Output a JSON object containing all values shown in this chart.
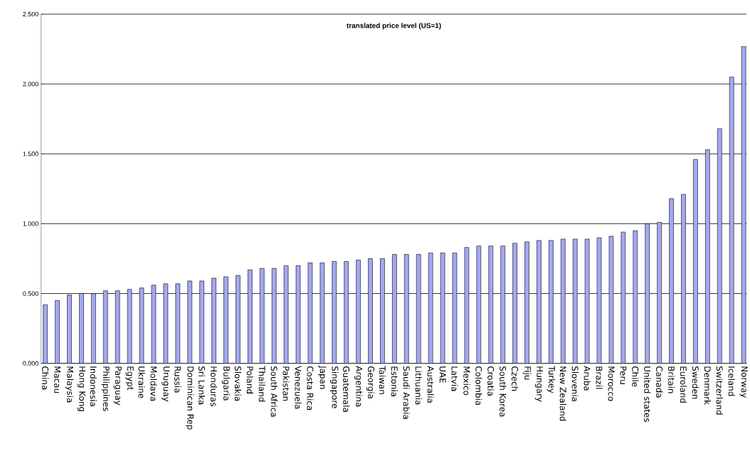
{
  "chart_data": {
    "type": "bar",
    "title": "translated price level (US=1)",
    "categories": [
      "China",
      "Macau",
      "Malaysia",
      "Hong Kong",
      "Indonesia",
      "Philippines",
      "Paraguay",
      "Egypt",
      "Ukraine",
      "Moldava",
      "Uruguay",
      "Russia",
      "Dominican Rep",
      "Sri Lanka",
      "Honduras",
      "Bulgaria",
      "Slovakia",
      "Poland",
      "Thailand",
      "South Africa",
      "Pakistan",
      "Venezuela",
      "Costa Rica",
      "Japan",
      "Singapore",
      "Guatemala",
      "Argentina",
      "Georgia",
      "Taiwan",
      "Estonia",
      "Saudi Arabia",
      "Lithuania",
      "Australia",
      "UAE",
      "Latvia",
      "Mexico",
      "Colombia",
      "Croatia",
      "South Korea",
      "Czech",
      "Fiju",
      "Hungary",
      "Turkey",
      "New Zealand",
      "Slovenia",
      "Aruba",
      "Brazil",
      "Morocco",
      "Peru",
      "Chile",
      "United states",
      "Canada",
      "Britain",
      "Euroland",
      "Sweden",
      "Denmark",
      "Switzerland",
      "Iceland",
      "Norway"
    ],
    "values": [
      0.42,
      0.45,
      0.49,
      0.5,
      0.5,
      0.52,
      0.52,
      0.53,
      0.54,
      0.56,
      0.57,
      0.57,
      0.59,
      0.59,
      0.61,
      0.62,
      0.63,
      0.67,
      0.68,
      0.68,
      0.7,
      0.7,
      0.72,
      0.72,
      0.73,
      0.73,
      0.74,
      0.75,
      0.75,
      0.78,
      0.78,
      0.78,
      0.79,
      0.79,
      0.79,
      0.83,
      0.84,
      0.84,
      0.84,
      0.86,
      0.87,
      0.88,
      0.88,
      0.89,
      0.89,
      0.89,
      0.9,
      0.91,
      0.94,
      0.95,
      1.0,
      1.01,
      1.18,
      1.21,
      1.46,
      1.53,
      1.68,
      2.05,
      2.27
    ],
    "color": "#a4a8f2",
    "ylim": [
      0,
      2.5
    ],
    "yticks": [
      {
        "value": 0,
        "label": "0.000"
      },
      {
        "value": 0.5,
        "label": "0.500"
      },
      {
        "value": 1,
        "label": "1.000"
      },
      {
        "value": 1.5,
        "label": "1.500"
      },
      {
        "value": 2,
        "label": "2.000"
      },
      {
        "value": 2.5,
        "label": "2.500"
      }
    ],
    "grid": "y"
  }
}
